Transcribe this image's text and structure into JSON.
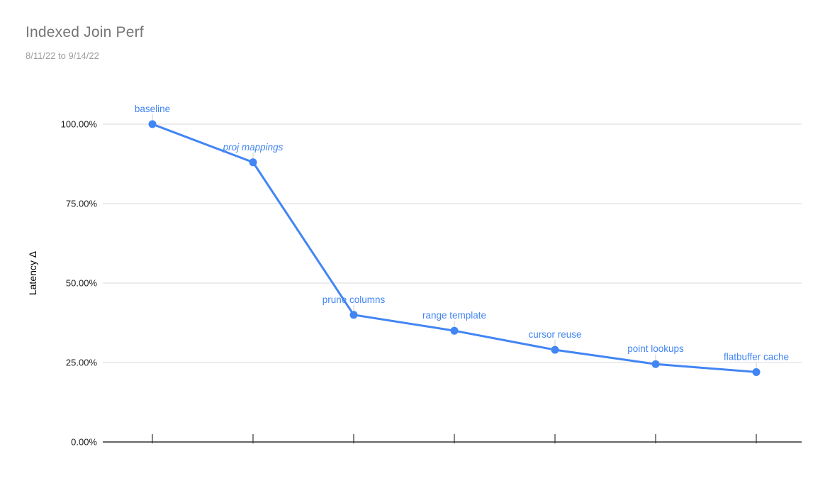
{
  "chart_data": {
    "type": "line",
    "title": "Indexed Join Perf",
    "subtitle": "8/11/22 to 9/14/22",
    "xlabel": "",
    "ylabel": "Latency Δ",
    "ylim": [
      0,
      100
    ],
    "grid": true,
    "legend": "none",
    "y_ticks": [
      {
        "value": 100,
        "label": "100.00%"
      },
      {
        "value": 75,
        "label": "75.00%"
      },
      {
        "value": 50,
        "label": "50.00%"
      },
      {
        "value": 25,
        "label": "25.00%"
      },
      {
        "value": 0,
        "label": "0.00%"
      }
    ],
    "series": [
      {
        "name": "Latency Δ",
        "color": "#4285f4",
        "points": [
          {
            "label": "baseline",
            "value": 100,
            "style": "normal"
          },
          {
            "label": "proj mappings",
            "value": 88,
            "style": "italic"
          },
          {
            "label": "prune columns",
            "value": 40,
            "style": "normal"
          },
          {
            "label": "range template",
            "value": 35,
            "style": "normal"
          },
          {
            "label": "cursor reuse",
            "value": 29,
            "style": "normal"
          },
          {
            "label": "point lookups",
            "value": 24.5,
            "style": "normal"
          },
          {
            "label": "flatbuffer cache",
            "value": 22,
            "style": "normal"
          }
        ]
      }
    ]
  },
  "theme": {
    "accent": "#4285f4",
    "annotation_text": "#4285f4",
    "title_color": "#757575",
    "subtitle_color": "#9e9e9e",
    "gridline": "#dadada",
    "axis_line": "#333333",
    "tick_mark": "#333333",
    "tick_label": "#222222",
    "leader_line": "#cccccc",
    "background": "#ffffff"
  }
}
